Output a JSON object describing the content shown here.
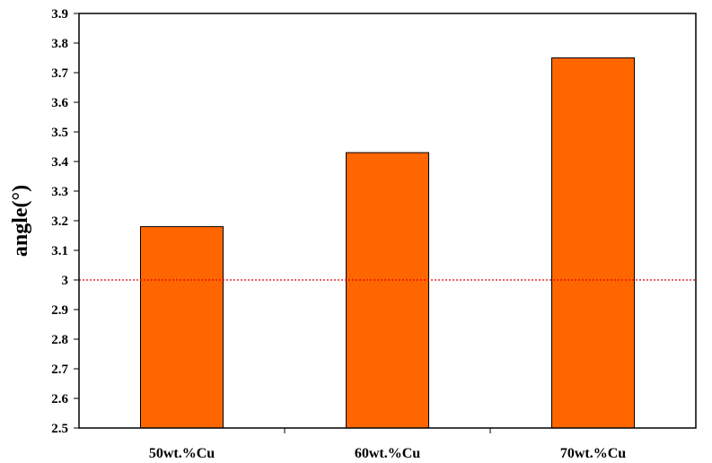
{
  "chart_data": {
    "type": "bar",
    "title": "",
    "xlabel": "",
    "ylabel": "angle(°)",
    "categories": [
      "50wt.%Cu",
      "60wt.%Cu",
      "70wt.%Cu"
    ],
    "values": [
      3.18,
      3.43,
      3.75
    ],
    "ylim": [
      2.5,
      3.9
    ],
    "yticks": [
      "2.5",
      "2.6",
      "2.7",
      "2.8",
      "2.9",
      "3",
      "3.1",
      "3.2",
      "3.3",
      "3.4",
      "3.5",
      "3.6",
      "3.7",
      "3.8",
      "3.9"
    ],
    "reference_line": {
      "y": 3.0,
      "style": "dotted",
      "color": "#e00000"
    },
    "grid": false,
    "legend": "none",
    "bar_color": "#ff6600",
    "bar_edge_color": "#000000"
  }
}
